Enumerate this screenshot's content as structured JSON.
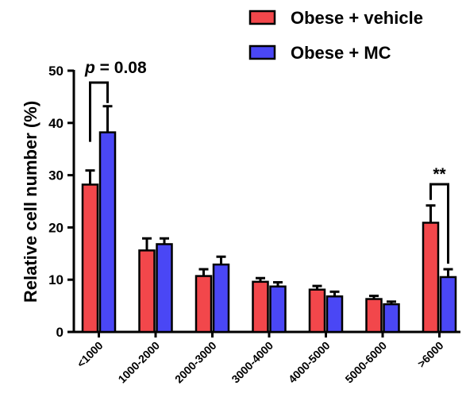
{
  "chart_data": {
    "type": "bar",
    "title": "",
    "xlabel": "",
    "ylabel": "Relative cell number (%)",
    "ylim": [
      0,
      50
    ],
    "yticks": [
      0,
      10,
      20,
      30,
      40,
      50
    ],
    "categories": [
      "<1000",
      "1000-2000",
      "2000-3000",
      "3000-4000",
      "4000-5000",
      "5000-6000",
      ">6000"
    ],
    "series": [
      {
        "name": "Obese + vehicle",
        "color": "#f2474b",
        "values": [
          28.2,
          15.6,
          10.7,
          9.6,
          8.1,
          6.3,
          20.9
        ],
        "errors": [
          2.7,
          2.3,
          1.3,
          0.7,
          0.7,
          0.6,
          3.3
        ]
      },
      {
        "name": "Obese + MC",
        "color": "#4a47f5",
        "values": [
          38.2,
          16.8,
          12.9,
          8.7,
          6.8,
          5.3,
          10.5
        ],
        "errors": [
          5.0,
          1.1,
          1.5,
          0.8,
          0.9,
          0.5,
          1.5
        ]
      }
    ],
    "legend_position": "top-right",
    "grid": false,
    "annotations": [
      {
        "text_prefix": "p",
        "text_rest": " = 0.08",
        "category_index": 0
      },
      {
        "text": "**",
        "category_index": 6
      }
    ]
  }
}
